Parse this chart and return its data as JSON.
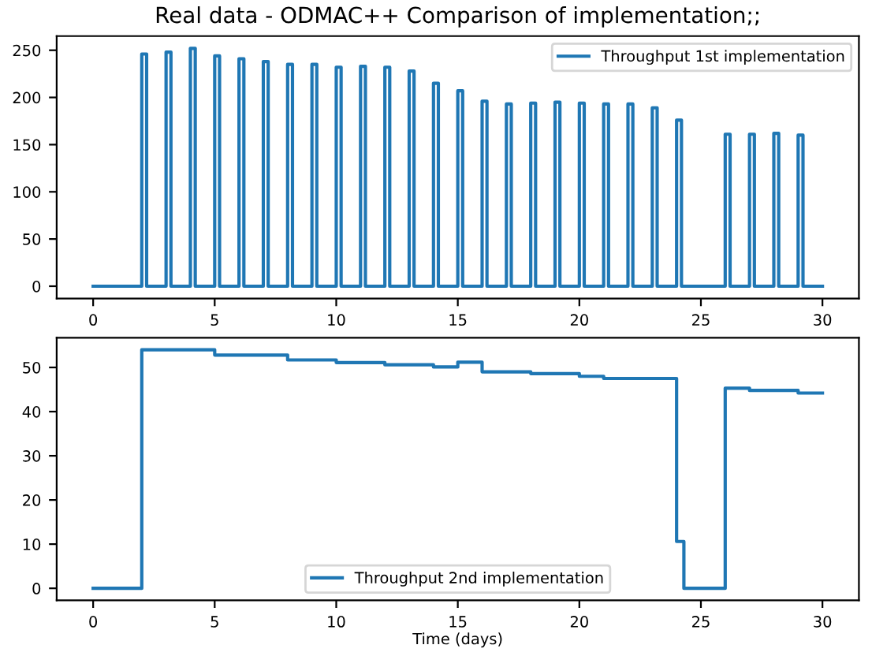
{
  "chart_data": [
    {
      "type": "step",
      "title": "Real data - ODMAC++ Comparison of implementation;;",
      "legend": "top right",
      "grid": false,
      "xlim": [
        -1.5,
        31.5
      ],
      "xticks": [
        0,
        5,
        10,
        15,
        20,
        25,
        30
      ],
      "ylim": [
        -13,
        265
      ],
      "yticks": [
        0,
        50,
        100,
        150,
        200,
        250
      ],
      "series": [
        {
          "name": "Throughput 1st implementation",
          "color": "#1f77b4",
          "x": [
            0,
            2,
            2.2,
            3,
            3.2,
            4,
            4.2,
            5,
            5.2,
            6,
            6.2,
            7,
            7.2,
            8,
            8.2,
            9,
            9.2,
            10,
            10.2,
            11,
            11.2,
            12,
            12.2,
            13,
            13.2,
            14,
            14.2,
            15,
            15.2,
            16,
            16.2,
            17,
            17.2,
            18,
            18.2,
            19,
            19.2,
            20,
            20.2,
            21,
            21.2,
            22,
            22.2,
            23,
            23.2,
            24,
            24.2,
            26,
            26.2,
            27,
            27.2,
            28,
            28.2,
            29,
            29.2,
            30
          ],
          "values": [
            0,
            246,
            0,
            248,
            0,
            252,
            0,
            244,
            0,
            241,
            0,
            238,
            0,
            235,
            0,
            235,
            0,
            232,
            0,
            233,
            0,
            232,
            0,
            228,
            0,
            215,
            0,
            207,
            0,
            196,
            0,
            193,
            0,
            194,
            0,
            195,
            0,
            194,
            0,
            193,
            0,
            193,
            0,
            189,
            0,
            176,
            0,
            161,
            0,
            161,
            0,
            162,
            0,
            160,
            0,
            0
          ]
        }
      ]
    },
    {
      "type": "step",
      "xlabel": "Time (days)",
      "legend": "bottom",
      "grid": false,
      "xlim": [
        -1.5,
        31.5
      ],
      "xticks": [
        0,
        5,
        10,
        15,
        20,
        25,
        30
      ],
      "ylim": [
        -2.7,
        56.7
      ],
      "yticks": [
        0,
        10,
        20,
        30,
        40,
        50
      ],
      "series": [
        {
          "name": "Throughput 2nd implementation",
          "color": "#1f77b4",
          "x": [
            0,
            2,
            5,
            8,
            10,
            12,
            14,
            15,
            16,
            18,
            20,
            21,
            24,
            24.3,
            26,
            27,
            29,
            30
          ],
          "values": [
            0,
            54,
            52.8,
            51.7,
            51.1,
            50.6,
            50.1,
            51.2,
            49.0,
            48.6,
            48.0,
            47.5,
            10.6,
            0,
            45.3,
            44.8,
            44.2,
            44.2
          ]
        }
      ]
    }
  ]
}
